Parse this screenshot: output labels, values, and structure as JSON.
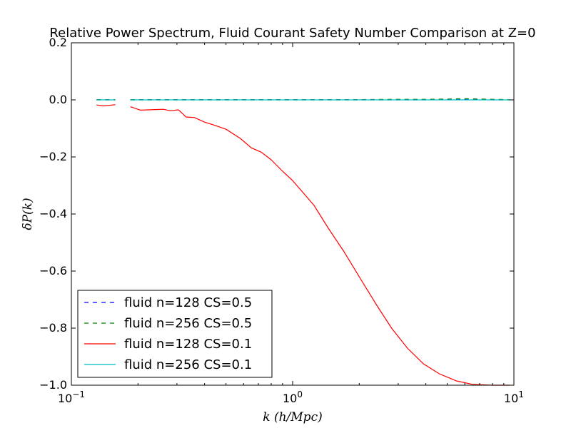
{
  "chart_data": {
    "type": "line",
    "title": "Relative Power Spectrum, Fluid Courant Safety Number Comparison at Z=0",
    "xlabel": "k (h/Mpc)",
    "ylabel": "δP(k)",
    "xscale": "log",
    "xlim": [
      0.1,
      10
    ],
    "ylim": [
      -1.0,
      0.2
    ],
    "yticks": [
      0.2,
      0.0,
      -0.2,
      -0.4,
      -0.6,
      -0.8,
      -1.0
    ],
    "ytick_labels": [
      "0.2",
      "0.0",
      "−0.2",
      "−0.4",
      "−0.6",
      "−0.8",
      "−1.0"
    ],
    "xticks": [
      {
        "value": 0.1,
        "base": "10",
        "exp": "−1"
      },
      {
        "value": 1,
        "base": "10",
        "exp": "0"
      },
      {
        "value": 10,
        "base": "10",
        "exp": "1"
      }
    ],
    "grid": false,
    "legend_position": "lower-left",
    "series": [
      {
        "name": "fluid n=128 CS=0.5",
        "color": "#0000ff",
        "dash": "dashed",
        "segments": [
          [
            [
              0.13,
              0.0
            ],
            [
              0.135,
              0.0
            ],
            [
              0.14,
              0.0
            ],
            [
              0.15,
              0.0
            ],
            [
              0.158,
              0.0
            ]
          ],
          [
            [
              0.185,
              0.0
            ],
            [
              0.3,
              0.0
            ],
            [
              0.5,
              0.0
            ],
            [
              1.0,
              0.0
            ],
            [
              2.0,
              0.0
            ],
            [
              4.0,
              0.0
            ],
            [
              6.0,
              0.002
            ],
            [
              8.0,
              0.0
            ],
            [
              9.6,
              0.0
            ]
          ]
        ]
      },
      {
        "name": "fluid n=256 CS=0.5",
        "color": "#008000",
        "dash": "dashed",
        "segments": [
          [
            [
              0.13,
              0.001
            ],
            [
              0.14,
              0.001
            ],
            [
              0.15,
              0.001
            ],
            [
              0.158,
              0.001
            ]
          ],
          [
            [
              0.185,
              0.001
            ],
            [
              0.3,
              0.001
            ],
            [
              0.5,
              0.001
            ],
            [
              1.0,
              0.001
            ],
            [
              2.0,
              0.001
            ],
            [
              3.0,
              0.002
            ],
            [
              4.0,
              0.002
            ],
            [
              5.0,
              0.003
            ],
            [
              6.0,
              0.004
            ],
            [
              7.0,
              0.003
            ],
            [
              8.0,
              0.002
            ],
            [
              9.6,
              0.001
            ]
          ]
        ]
      },
      {
        "name": "fluid n=128 CS=0.1",
        "color": "#ff0000",
        "dash": "solid",
        "segments": [
          [
            [
              0.13,
              -0.018
            ],
            [
              0.14,
              -0.021
            ],
            [
              0.158,
              -0.017
            ]
          ],
          [
            [
              0.185,
              -0.024
            ],
            [
              0.205,
              -0.036
            ],
            [
              0.24,
              -0.034
            ],
            [
              0.26,
              -0.033
            ],
            [
              0.28,
              -0.038
            ],
            [
              0.305,
              -0.035
            ],
            [
              0.33,
              -0.06
            ],
            [
              0.36,
              -0.062
            ],
            [
              0.4,
              -0.078
            ],
            [
              0.44,
              -0.088
            ],
            [
              0.5,
              -0.103
            ],
            [
              0.58,
              -0.135
            ],
            [
              0.65,
              -0.168
            ],
            [
              0.72,
              -0.183
            ],
            [
              0.8,
              -0.21
            ],
            [
              0.9,
              -0.25
            ],
            [
              1.0,
              -0.283
            ],
            [
              1.1,
              -0.32
            ],
            [
              1.25,
              -0.37
            ],
            [
              1.45,
              -0.45
            ],
            [
              1.7,
              -0.53
            ],
            [
              2.0,
              -0.62
            ],
            [
              2.4,
              -0.72
            ],
            [
              2.8,
              -0.8
            ],
            [
              3.3,
              -0.87
            ],
            [
              3.9,
              -0.925
            ],
            [
              4.6,
              -0.96
            ],
            [
              5.5,
              -0.985
            ],
            [
              6.5,
              -0.997
            ],
            [
              8.0,
              -1.0
            ],
            [
              9.6,
              -1.0
            ]
          ]
        ]
      },
      {
        "name": "fluid n=256 CS=0.1",
        "color": "#00bfbf",
        "dash": "solid",
        "segments": [
          [
            [
              0.13,
              0.0
            ],
            [
              0.158,
              0.0
            ]
          ],
          [
            [
              0.185,
              0.0
            ],
            [
              1.0,
              0.0
            ],
            [
              5.0,
              0.0
            ],
            [
              9.6,
              0.0
            ]
          ]
        ]
      }
    ]
  }
}
